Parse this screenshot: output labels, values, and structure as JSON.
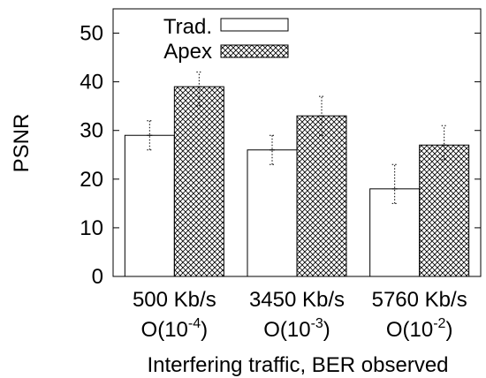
{
  "chart_data": {
    "type": "bar",
    "title": "",
    "ylabel": "PSNR",
    "xlabel": "Interfering traffic, BER observed",
    "ylim": [
      0,
      55
    ],
    "yticks": [
      0,
      10,
      20,
      30,
      40,
      50
    ],
    "grid": false,
    "legend_position": "top-left",
    "categories": [
      {
        "rate": "500 Kb/s",
        "ber_base": "O(10",
        "ber_exp": "-4",
        "ber_close": ")"
      },
      {
        "rate": "3450 Kb/s",
        "ber_base": "O(10",
        "ber_exp": "-3",
        "ber_close": ")"
      },
      {
        "rate": "5760 Kb/s",
        "ber_base": "O(10",
        "ber_exp": "-2",
        "ber_close": ")"
      }
    ],
    "series": [
      {
        "name": "Trad.",
        "pattern": "none",
        "values": [
          29,
          26,
          18
        ],
        "err_low": [
          26,
          23,
          15
        ],
        "err_high": [
          32,
          29,
          23
        ]
      },
      {
        "name": "Apex",
        "pattern": "crosshatch",
        "values": [
          39,
          33,
          27
        ],
        "err_low": [
          35,
          29,
          24
        ],
        "err_high": [
          42,
          37,
          31
        ]
      }
    ]
  }
}
